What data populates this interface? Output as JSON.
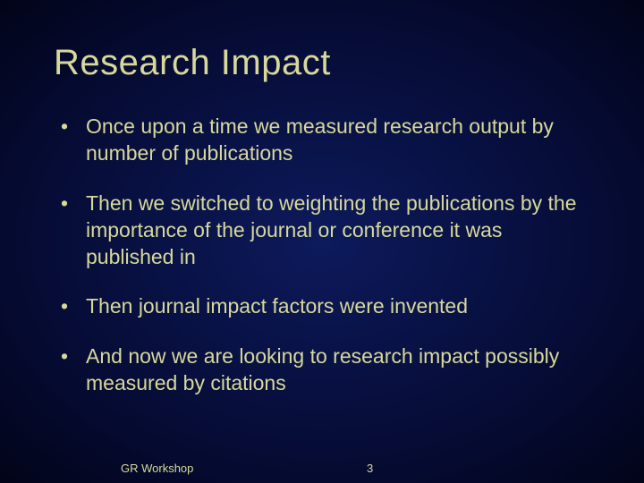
{
  "slide": {
    "title": "Research Impact",
    "bullets": [
      "Once upon a time we measured research output by number of publications",
      "Then we switched to weighting the publications by the importance of the journal or conference it was published in",
      "Then journal impact factors were invented",
      "And now we are looking to research impact possibly measured by citations"
    ],
    "footer_left": "GR Workshop",
    "page_number": "3"
  },
  "style": {
    "background_gradient_center": "#0d1a5c",
    "background_gradient_mid": "#050a30",
    "background_gradient_edge": "#020418",
    "text_color": "#d8d89a",
    "title_fontsize": 40,
    "bullet_fontsize": 23,
    "footer_fontsize": 13,
    "font_family": "Verdana"
  }
}
